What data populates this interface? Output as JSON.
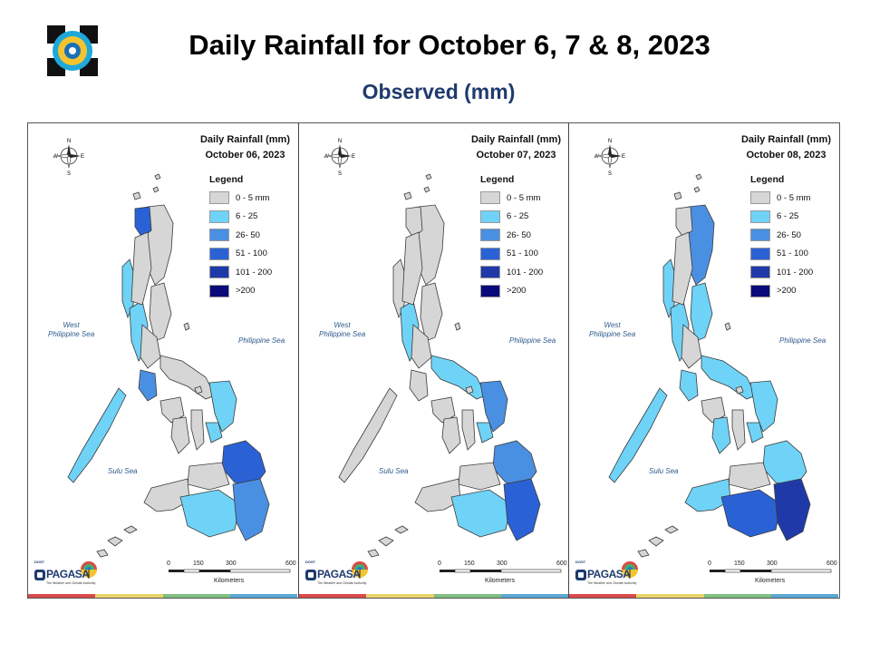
{
  "header": {
    "title": "Daily Rainfall for October 6, 7 & 8, 2023",
    "subtitle": "Observed (mm)"
  },
  "legend": {
    "title": "Legend",
    "classes": [
      {
        "label": "0 - 5 mm",
        "color": "#d6d6d6"
      },
      {
        "label": "6 - 25",
        "color": "#6fd3f7"
      },
      {
        "label": "26- 50",
        "color": "#4a90e2"
      },
      {
        "label": "51 - 100",
        "color": "#2a62d6"
      },
      {
        "label": "101 - 200",
        "color": "#1f3aa8"
      },
      {
        "label": ">200",
        "color": "#0a0a7a"
      }
    ]
  },
  "seas": {
    "west": "West\nPhilippine Sea",
    "east": "Philippine Sea",
    "sulu": "Sulu Sea"
  },
  "compass": {
    "n": "N",
    "s": "S",
    "e": "E",
    "w": "W"
  },
  "scale": {
    "ticks": [
      "0",
      "150",
      "300",
      "600"
    ],
    "unit": "Kilometers"
  },
  "brand": {
    "name": "PAGASA",
    "tagline": "The Weather and Climate Authority",
    "prefix": "DOST"
  },
  "panels": [
    {
      "heading": "Daily Rainfall (mm)",
      "date": "October 06, 2023",
      "rain": {
        "ilocos_norte": 3,
        "ilocos_coast": 1,
        "luzon_west": 1,
        "mindoro": 2,
        "palawan": 1,
        "eastern_visayas": 1,
        "visayas_south": 1,
        "mindanao_ne": 3,
        "mindanao_sw": 1,
        "mindanao_se": 2
      }
    },
    {
      "heading": "Daily Rainfall (mm)",
      "date": "October 07, 2023",
      "rain": {
        "luzon_west": 1,
        "bicol": 1,
        "eastern_visayas": 2,
        "mindanao_ne": 2,
        "mindanao_sw": 1,
        "mindanao_se": 3,
        "visayas_south": 1
      }
    },
    {
      "heading": "Daily Rainfall (mm)",
      "date": "October 08, 2023",
      "rain": {
        "cagayan": 2,
        "ilocos_coast": 1,
        "luzon_west": 1,
        "luzon_east": 1,
        "bicol": 1,
        "mindoro": 1,
        "palawan": 1,
        "eastern_visayas": 1,
        "visayas_west": 1,
        "visayas_south": 1,
        "mindanao_west": 1,
        "mindanao_sw": 3,
        "mindanao_se": 4,
        "mindanao_ne": 1
      }
    }
  ],
  "colors": {
    "land": "#d6d6d6",
    "outline": "#3a3a3a",
    "bar": [
      "#d94a4a",
      "#e8d46a",
      "#7fbf7f",
      "#5aa9d6"
    ]
  }
}
